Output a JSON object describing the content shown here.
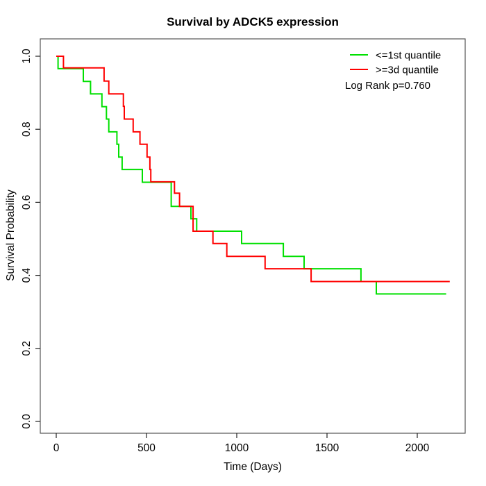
{
  "title": "Survival by ADCK5 expression",
  "xlabel": "Time (Days)",
  "ylabel": "Survival Probability",
  "chart_data": {
    "type": "line",
    "subtype": "kaplan-meier-step",
    "title": "Survival by ADCK5 expression",
    "xlabel": "Time (Days)",
    "ylabel": "Survival Probability",
    "xlim": [
      0,
      2180
    ],
    "ylim": [
      0.0,
      1.0
    ],
    "x_ticks": [
      0,
      500,
      1000,
      1500,
      2000
    ],
    "y_ticks": [
      "0.0",
      "0.2",
      "0.4",
      "0.6",
      "0.8",
      "1.0"
    ],
    "grid": false,
    "legend_position": "top-right",
    "log_rank_label": "Log Rank p=0.760",
    "log_rank_p": "0.760",
    "series": [
      {
        "id": "le-1st-quantile",
        "name": "<=1st quantile",
        "color": "#00E000",
        "steps": [
          [
            0,
            1.0
          ],
          [
            10,
            0.966
          ],
          [
            150,
            0.931
          ],
          [
            190,
            0.897
          ],
          [
            253,
            0.862
          ],
          [
            278,
            0.828
          ],
          [
            291,
            0.793
          ],
          [
            336,
            0.759
          ],
          [
            346,
            0.724
          ],
          [
            365,
            0.69
          ],
          [
            477,
            0.655
          ],
          [
            637,
            0.589
          ],
          [
            746,
            0.555
          ],
          [
            778,
            0.521
          ],
          [
            1027,
            0.487
          ],
          [
            1258,
            0.452
          ],
          [
            1373,
            0.418
          ],
          [
            1688,
            0.383
          ],
          [
            1773,
            0.349
          ]
        ],
        "end_time": 2160
      },
      {
        "id": "ge-3d-quantile",
        "name": ">=3d quantile",
        "color": "#FF0000",
        "steps": [
          [
            0,
            1.0
          ],
          [
            40,
            0.968
          ],
          [
            265,
            0.932
          ],
          [
            291,
            0.897
          ],
          [
            372,
            0.863
          ],
          [
            377,
            0.828
          ],
          [
            426,
            0.793
          ],
          [
            464,
            0.759
          ],
          [
            503,
            0.724
          ],
          [
            519,
            0.69
          ],
          [
            524,
            0.656
          ],
          [
            655,
            0.625
          ],
          [
            683,
            0.589
          ],
          [
            758,
            0.521
          ],
          [
            868,
            0.487
          ],
          [
            945,
            0.452
          ],
          [
            1157,
            0.418
          ],
          [
            1412,
            0.383
          ]
        ],
        "end_time": 2180
      }
    ]
  }
}
